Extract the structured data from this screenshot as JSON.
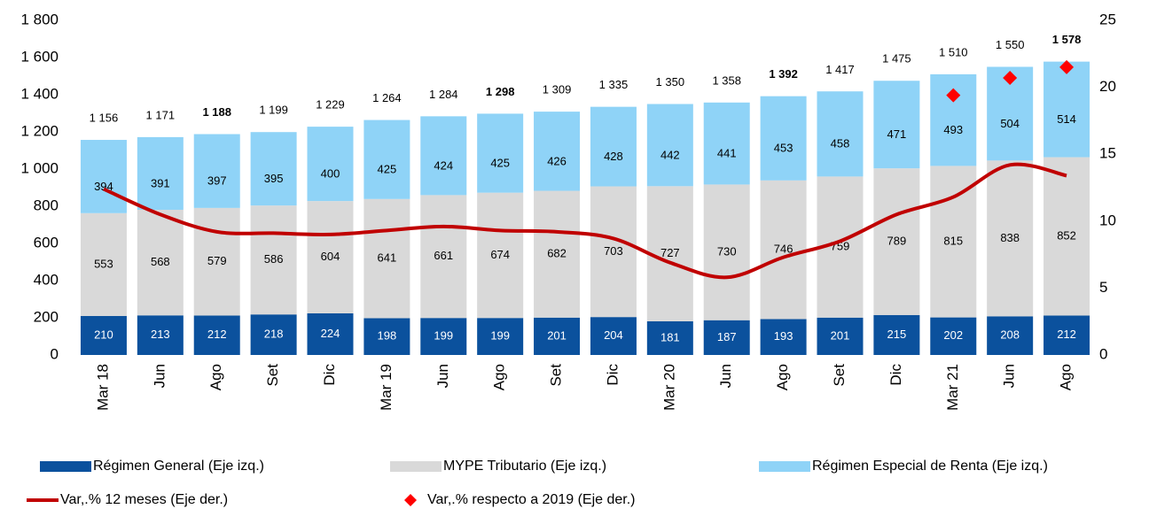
{
  "chart_data": {
    "type": "stacked_bar_line",
    "categories": [
      "Mar 18",
      "Jun",
      "Ago",
      "Set",
      "Dic",
      "Mar 19",
      "Jun",
      "Ago",
      "Set",
      "Dic",
      "Mar 20",
      "Jun",
      "Ago",
      "Set",
      "Dic",
      "Mar 21",
      "Jun",
      "Ago"
    ],
    "series": [
      {
        "name": "Régimen General (Eje izq.)",
        "color": "#0b519d",
        "label_color": "#ffffff",
        "values": [
          210,
          213,
          212,
          218,
          224,
          198,
          199,
          199,
          201,
          204,
          181,
          187,
          193,
          201,
          215,
          202,
          208,
          212
        ]
      },
      {
        "name": "MYPE Tributario (Eje izq.)",
        "color": "#d9d9d9",
        "label_color": "#000000",
        "values": [
          553,
          568,
          579,
          586,
          604,
          641,
          661,
          674,
          682,
          703,
          727,
          730,
          746,
          759,
          789,
          815,
          838,
          852
        ]
      },
      {
        "name": "Régimen Especial de Renta (Eje izq.)",
        "color": "#8fd3f7",
        "label_color": "#000000",
        "values": [
          394,
          391,
          397,
          395,
          400,
          425,
          424,
          425,
          426,
          428,
          442,
          441,
          453,
          458,
          471,
          493,
          504,
          514
        ]
      }
    ],
    "totals": {
      "values": [
        1156,
        1171,
        1188,
        1199,
        1229,
        1264,
        1284,
        1298,
        1309,
        1335,
        1350,
        1358,
        1392,
        1417,
        1475,
        1510,
        1550,
        1578
      ],
      "value_labels": [
        "1 156",
        "1 171",
        "1 188",
        "1 199",
        "1 229",
        "1 264",
        "1 284",
        "1 298",
        "1 309",
        "1 335",
        "1 350",
        "1 358",
        "1 392",
        "1 417",
        "1 475",
        "1 510",
        "1 550",
        "1 578"
      ],
      "bold": [
        false,
        false,
        true,
        false,
        false,
        false,
        false,
        true,
        false,
        false,
        false,
        false,
        true,
        false,
        false,
        false,
        false,
        true
      ]
    },
    "lines": [
      {
        "name": "Var,.% 12 meses (Eje der.)",
        "color": "#c00000",
        "axis": "y2",
        "style": "line",
        "values": [
          12.4,
          10.5,
          9.2,
          9.1,
          9.0,
          9.3,
          9.6,
          9.3,
          9.2,
          8.7,
          6.9,
          5.8,
          7.3,
          8.5,
          10.5,
          11.8,
          14.2,
          13.4
        ]
      },
      {
        "name": "Var,.% respecto a 2019 (Eje der.)",
        "color": "#ff0000",
        "axis": "y2",
        "style": "diamond",
        "values": [
          null,
          null,
          null,
          null,
          null,
          null,
          null,
          null,
          null,
          null,
          null,
          null,
          null,
          null,
          null,
          19.4,
          20.7,
          21.5
        ]
      }
    ],
    "ylim": [
      0,
      1800
    ],
    "yticks": [
      0,
      200,
      400,
      600,
      800,
      {
        "value": 1000,
        "label": "1 000"
      },
      {
        "value": 1200,
        "label": "1 200"
      },
      {
        "value": 1400,
        "label": "1 400"
      },
      {
        "value": 1600,
        "label": "1 600"
      },
      {
        "value": 1800,
        "label": "1 800"
      }
    ],
    "y2lim": [
      0,
      25
    ],
    "y2ticks": [
      0,
      5,
      10,
      15,
      20,
      25
    ],
    "grid": false
  }
}
